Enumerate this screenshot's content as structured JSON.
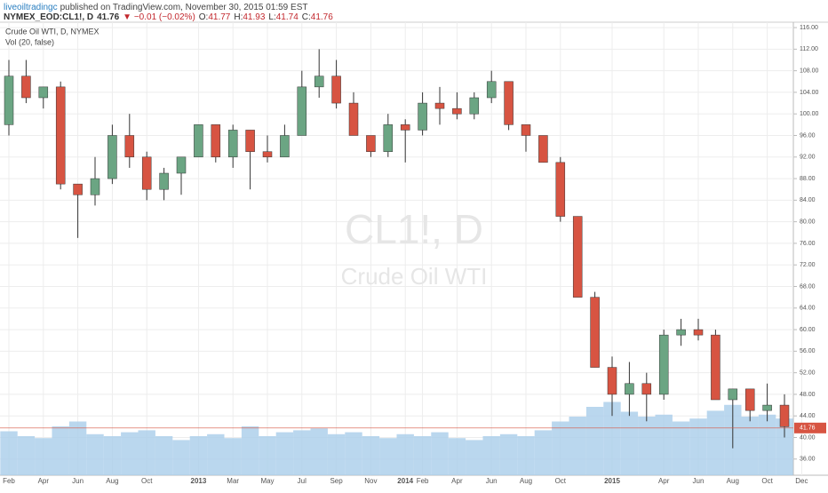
{
  "header": {
    "author": "liveoiltradingc",
    "published": "published on TradingView.com, November 30, 2015 01:59 EST",
    "symbol": "NYMEX_EOD:CL1!, D",
    "last": "41.76",
    "change": "▼ −0.01 (−0.02%)",
    "ohlc": [
      {
        "key": "O:",
        "value": "41.77"
      },
      {
        "key": "H:",
        "value": "41.93"
      },
      {
        "key": "L:",
        "value": "41.74"
      },
      {
        "key": "C:",
        "value": "41.76"
      }
    ]
  },
  "legend": {
    "series_label": "Crude Oil WTI, D, NYMEX",
    "volume_label": "Vol (20, false)"
  },
  "watermark": {
    "symbol": "CL1!, D",
    "description": "Crude Oil WTI"
  },
  "chart_data": {
    "type": "candlestick",
    "up_color": "#6ba583",
    "down_color": "#d75442",
    "wick_color": "#333333",
    "volume_color": "#a9cdea",
    "grid": true,
    "categories": [
      "Feb",
      null,
      "Apr",
      null,
      "Jun",
      null,
      "Aug",
      null,
      "Oct",
      null,
      null,
      "2013",
      null,
      "Mar",
      null,
      "May",
      null,
      "Jul",
      null,
      "Sep",
      null,
      "Nov",
      null,
      "2014",
      "Feb",
      null,
      "Apr",
      null,
      "Jun",
      null,
      "Aug",
      null,
      "Oct",
      null,
      null,
      "2015",
      null,
      null,
      "Apr",
      null,
      "Jun",
      null,
      "Aug",
      null,
      "Oct",
      null,
      "Dec"
    ],
    "open": [
      98,
      107,
      103,
      105,
      87,
      85,
      88,
      96,
      92,
      86,
      89,
      92,
      98,
      92,
      97,
      93,
      92,
      96,
      105,
      107,
      102,
      96,
      93,
      98,
      97,
      102,
      101,
      100,
      103,
      106,
      98,
      96,
      91,
      81,
      66,
      53,
      48,
      50,
      48,
      59,
      60,
      59,
      47,
      49,
      45,
      46,
      null
    ],
    "high": [
      110,
      110,
      105,
      106,
      87,
      92,
      98,
      100,
      93,
      90,
      92,
      98,
      98,
      98,
      97,
      96,
      98,
      108,
      112,
      110,
      104,
      96,
      100,
      99,
      104,
      105,
      104,
      104,
      108,
      106,
      98,
      96,
      92,
      81,
      67,
      55,
      54,
      52,
      60,
      62,
      62,
      60,
      49,
      49,
      50,
      48,
      null
    ],
    "low": [
      96,
      102,
      101,
      86,
      77,
      83,
      87,
      90,
      84,
      84,
      85,
      92,
      91,
      90,
      86,
      91,
      92,
      96,
      103,
      101,
      96,
      92,
      92,
      91,
      96,
      98,
      99,
      99,
      102,
      97,
      93,
      91,
      80,
      66,
      53,
      44,
      44,
      43,
      47,
      57,
      58,
      47,
      38,
      43,
      43,
      40,
      null
    ],
    "close": [
      107,
      103,
      105,
      87,
      85,
      88,
      96,
      92,
      86,
      89,
      92,
      98,
      92,
      97,
      93,
      92,
      96,
      105,
      107,
      102,
      96,
      93,
      98,
      97,
      102,
      101,
      100,
      103,
      106,
      98,
      96,
      91,
      81,
      66,
      53,
      48,
      50,
      48,
      59,
      60,
      59,
      47,
      49,
      45,
      46,
      42,
      null
    ],
    "volume": [
      45,
      40,
      38,
      50,
      55,
      42,
      40,
      44,
      46,
      40,
      36,
      40,
      42,
      38,
      50,
      40,
      44,
      46,
      48,
      42,
      44,
      40,
      38,
      42,
      40,
      44,
      38,
      36,
      40,
      42,
      40,
      46,
      55,
      60,
      70,
      75,
      65,
      60,
      62,
      55,
      58,
      66,
      72,
      60,
      62,
      58,
      null
    ],
    "vlim": [
      0,
      100
    ],
    "last_price": {
      "value": 41.76,
      "label": "41.76"
    },
    "ylim": [
      33,
      117
    ],
    "yticks": [
      {
        "value": 36,
        "label": "36.00"
      },
      {
        "value": 40,
        "label": "40.00"
      },
      {
        "value": 44,
        "label": "44.00"
      },
      {
        "value": 48,
        "label": "48.00"
      },
      {
        "value": 52,
        "label": "52.00"
      },
      {
        "value": 56,
        "label": "56.00"
      },
      {
        "value": 60,
        "label": "60.00"
      },
      {
        "value": 64,
        "label": "64.00"
      },
      {
        "value": 68,
        "label": "68.00"
      },
      {
        "value": 72,
        "label": "72.00"
      },
      {
        "value": 76,
        "label": "76.00"
      },
      {
        "value": 80,
        "label": "80.00"
      },
      {
        "value": 84,
        "label": "84.00"
      },
      {
        "value": 88,
        "label": "88.00"
      },
      {
        "value": 92,
        "label": "92.00"
      },
      {
        "value": 96,
        "label": "96.00"
      },
      {
        "value": 100,
        "label": "100.00"
      },
      {
        "value": 104,
        "label": "104.00"
      },
      {
        "value": 108,
        "label": "108.00"
      },
      {
        "value": 112,
        "label": "112.00"
      },
      {
        "value": 116,
        "label": "116.00"
      }
    ]
  }
}
